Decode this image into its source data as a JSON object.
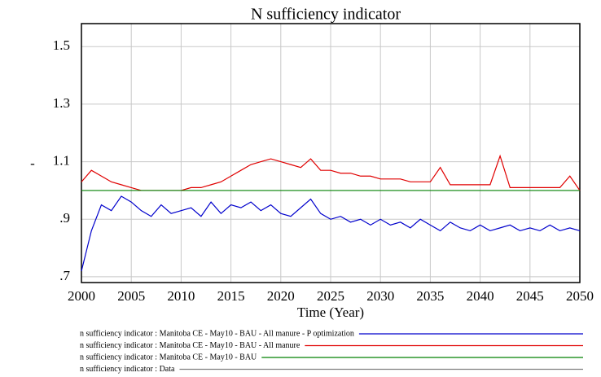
{
  "chart_data": {
    "type": "line",
    "title": "N sufficiency indicator",
    "x_label": "Time (Year)",
    "y_label": "-",
    "x": [
      2000,
      2001,
      2002,
      2003,
      2004,
      2005,
      2006,
      2007,
      2008,
      2009,
      2010,
      2011,
      2012,
      2013,
      2014,
      2015,
      2016,
      2017,
      2018,
      2019,
      2020,
      2021,
      2022,
      2023,
      2024,
      2025,
      2026,
      2027,
      2028,
      2029,
      2030,
      2031,
      2032,
      2033,
      2034,
      2035,
      2036,
      2037,
      2038,
      2039,
      2040,
      2041,
      2042,
      2043,
      2044,
      2045,
      2046,
      2047,
      2048,
      2049,
      2050
    ],
    "series": [
      {
        "name": "n sufficiency indicator : Manitoba CE - May10 - BAU - All manure - P optimization",
        "color": "#0000cc",
        "values": [
          0.72,
          0.86,
          0.95,
          0.93,
          0.98,
          0.96,
          0.93,
          0.91,
          0.95,
          0.92,
          0.93,
          0.94,
          0.91,
          0.96,
          0.92,
          0.95,
          0.94,
          0.96,
          0.93,
          0.95,
          0.92,
          0.91,
          0.94,
          0.97,
          0.92,
          0.9,
          0.91,
          0.89,
          0.9,
          0.88,
          0.9,
          0.88,
          0.89,
          0.87,
          0.9,
          0.88,
          0.86,
          0.89,
          0.87,
          0.86,
          0.88,
          0.86,
          0.87,
          0.88,
          0.86,
          0.87,
          0.86,
          0.88,
          0.86,
          0.87,
          0.86
        ]
      },
      {
        "name": "n sufficiency indicator : Manitoba CE - May10 - BAU - All manure",
        "color": "#e00000",
        "values": [
          1.03,
          1.07,
          1.05,
          1.03,
          1.02,
          1.01,
          1.0,
          1.0,
          1.0,
          1.0,
          1.0,
          1.01,
          1.01,
          1.02,
          1.03,
          1.05,
          1.07,
          1.09,
          1.1,
          1.11,
          1.1,
          1.09,
          1.08,
          1.11,
          1.07,
          1.07,
          1.06,
          1.06,
          1.05,
          1.05,
          1.04,
          1.04,
          1.04,
          1.03,
          1.03,
          1.03,
          1.08,
          1.02,
          1.02,
          1.02,
          1.02,
          1.02,
          1.12,
          1.01,
          1.01,
          1.01,
          1.01,
          1.01,
          1.01,
          1.05,
          1.0
        ]
      },
      {
        "name": "n sufficiency indicator : Manitoba CE - May10 - BAU",
        "color": "#008000",
        "values": [
          1.0,
          1.0,
          1.0,
          1.0,
          1.0,
          1.0,
          1.0,
          1.0,
          1.0,
          1.0,
          1.0,
          1.0,
          1.0,
          1.0,
          1.0,
          1.0,
          1.0,
          1.0,
          1.0,
          1.0,
          1.0,
          1.0,
          1.0,
          1.0,
          1.0,
          1.0,
          1.0,
          1.0,
          1.0,
          1.0,
          1.0,
          1.0,
          1.0,
          1.0,
          1.0,
          1.0,
          1.0,
          1.0,
          1.0,
          1.0,
          1.0,
          1.0,
          1.0,
          1.0,
          1.0,
          1.0,
          1.0,
          1.0,
          1.0,
          1.0,
          1.0
        ]
      },
      {
        "name": "n sufficiency indicator : Data",
        "color": "#808080",
        "values": [
          null,
          null,
          null,
          null,
          null,
          null,
          null,
          null,
          null,
          null,
          null,
          null,
          null,
          null,
          null,
          null,
          null,
          null,
          null,
          null,
          null,
          null,
          null,
          null,
          null,
          null,
          null,
          null,
          null,
          null,
          null,
          null,
          null,
          null,
          null,
          null,
          null,
          null,
          null,
          null,
          null,
          null,
          null,
          null,
          null,
          null,
          null,
          null,
          null,
          null,
          null
        ]
      }
    ],
    "xlim": [
      2000,
      2050
    ],
    "xticks": [
      2000,
      2005,
      2010,
      2015,
      2020,
      2025,
      2030,
      2035,
      2040,
      2045,
      2050
    ],
    "ylim": [
      0.68,
      1.58
    ],
    "yticks": [
      {
        "value": 0.7,
        "label": ".7"
      },
      {
        "value": 0.9,
        "label": ".9"
      },
      1.1,
      1.3,
      1.5
    ],
    "grid": true
  }
}
